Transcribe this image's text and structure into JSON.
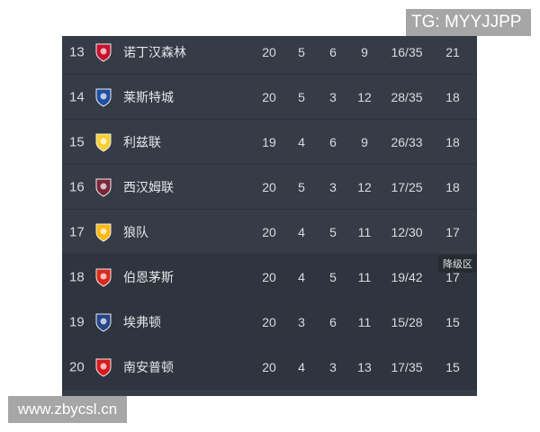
{
  "watermarks": {
    "top_right": "TG: MYYJJPP",
    "bottom_left": "www.zbycsl.cn"
  },
  "zone_label": "降级区",
  "rows": [
    {
      "rank": "13",
      "team": "诺丁汉森林",
      "crest": "forest-crest-icon",
      "color": "#c8102e",
      "played": "20",
      "won": "5",
      "drawn": "6",
      "lost": "9",
      "goals": "16/35",
      "points": "21"
    },
    {
      "rank": "14",
      "team": "莱斯特城",
      "crest": "leicester-crest-icon",
      "color": "#1f4fa3",
      "played": "20",
      "won": "5",
      "drawn": "3",
      "lost": "12",
      "goals": "28/35",
      "points": "18"
    },
    {
      "rank": "15",
      "team": "利兹联",
      "crest": "leeds-crest-icon",
      "color": "#f5d130",
      "played": "19",
      "won": "4",
      "drawn": "6",
      "lost": "9",
      "goals": "26/33",
      "points": "18"
    },
    {
      "rank": "16",
      "team": "西汉姆联",
      "crest": "westham-crest-icon",
      "color": "#7a263a",
      "played": "20",
      "won": "5",
      "drawn": "3",
      "lost": "12",
      "goals": "17/25",
      "points": "18"
    },
    {
      "rank": "17",
      "team": "狼队",
      "crest": "wolves-crest-icon",
      "color": "#fdb913",
      "played": "20",
      "won": "4",
      "drawn": "5",
      "lost": "11",
      "goals": "12/30",
      "points": "17"
    },
    {
      "rank": "18",
      "team": "伯恩茅斯",
      "crest": "bournemouth-crest-icon",
      "color": "#da291c",
      "played": "20",
      "won": "4",
      "drawn": "5",
      "lost": "11",
      "goals": "19/42",
      "points": "17"
    },
    {
      "rank": "19",
      "team": "埃弗顿",
      "crest": "everton-crest-icon",
      "color": "#274488",
      "played": "20",
      "won": "3",
      "drawn": "6",
      "lost": "11",
      "goals": "15/28",
      "points": "15"
    },
    {
      "rank": "20",
      "team": "南安普顿",
      "crest": "southampton-crest-icon",
      "color": "#d71920",
      "played": "20",
      "won": "4",
      "drawn": "3",
      "lost": "13",
      "goals": "17/35",
      "points": "15"
    }
  ]
}
